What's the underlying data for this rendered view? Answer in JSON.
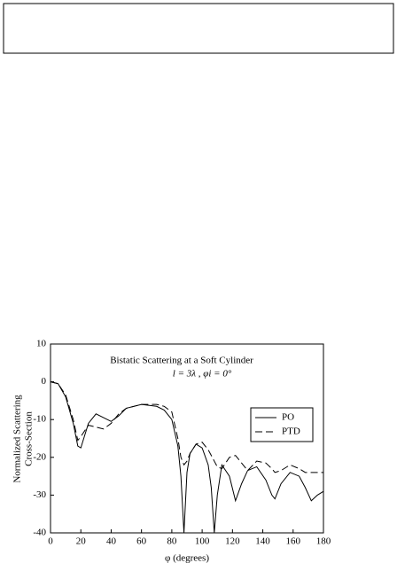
{
  "chart_data": {
    "type": "line",
    "title": "Bistatic Scattering at a Soft Cylinder",
    "subtitle": "l = 3λ ,  φi = 0°",
    "xlabel": "φ (degrees)",
    "ylabel": [
      "Normalized Scattering",
      "Cross-Section"
    ],
    "x": [
      0,
      5,
      10,
      15,
      18,
      20,
      25,
      30,
      35,
      40,
      45,
      50,
      60,
      70,
      75,
      80,
      84,
      86,
      88,
      90,
      92,
      96,
      100,
      104,
      106,
      108,
      110,
      113,
      118,
      122,
      126,
      130,
      136,
      142,
      146,
      148,
      152,
      158,
      164,
      168,
      172,
      176,
      180
    ],
    "series": [
      {
        "name": "PO",
        "color": "#000000",
        "dash": "none",
        "values": [
          0,
          -0.5,
          -4,
          -11,
          -17,
          -17.5,
          -11,
          -8.5,
          -9.5,
          -10.5,
          -9,
          -7,
          -6,
          -6.5,
          -7.5,
          -10,
          -17,
          -25,
          -40,
          -24,
          -19,
          -16.5,
          -17.5,
          -22,
          -28,
          -40,
          -30,
          -22,
          -25,
          -31.5,
          -27,
          -23.5,
          -22.5,
          -26,
          -30,
          -31,
          -27,
          -24,
          -25,
          -28,
          -31.5,
          -30,
          -29
        ]
      },
      {
        "name": "PTD",
        "color": "#000000",
        "dash": "8 4",
        "values": [
          0,
          -0.5,
          -3.5,
          -10,
          -15.5,
          -14.5,
          -11.5,
          -12,
          -12.5,
          -11,
          -8.5,
          -7,
          -6,
          -6,
          -6.5,
          -8,
          -15,
          -20,
          -22,
          -21,
          -19,
          -16.5,
          -16,
          -18,
          -19.5,
          -21,
          -22.5,
          -23,
          -20,
          -19.5,
          -21.5,
          -23.5,
          -21,
          -21.5,
          -23,
          -24,
          -23.5,
          -22,
          -23,
          -24,
          -24,
          -24,
          -24
        ]
      }
    ],
    "xlim": [
      0,
      180
    ],
    "xticks": [
      0,
      20,
      40,
      60,
      80,
      100,
      120,
      140,
      160,
      180
    ],
    "ylim": [
      -40,
      10
    ],
    "yticks": [
      10,
      0,
      -10,
      -20,
      -30,
      -40
    ]
  }
}
